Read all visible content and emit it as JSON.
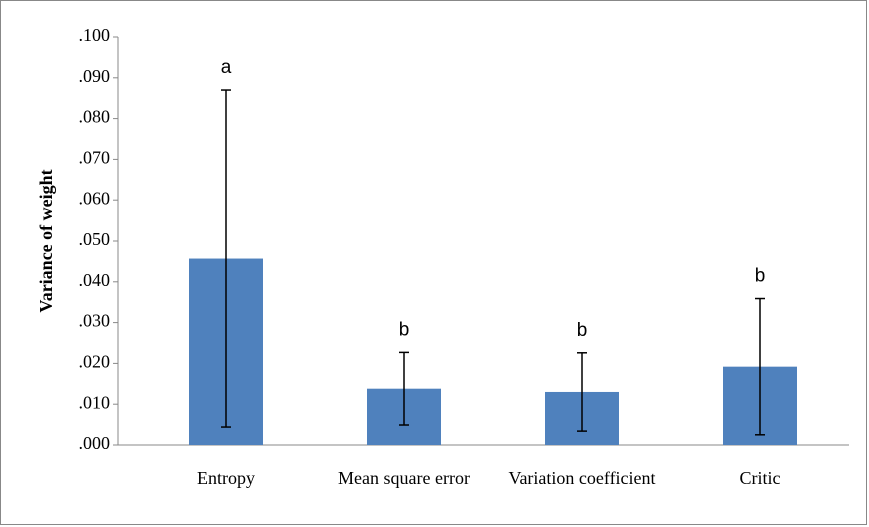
{
  "chart_data": {
    "type": "bar",
    "y_label": "Variance of weight",
    "categories": [
      "Entropy",
      "Mean square error",
      "Variation coefficient",
      "Critic"
    ],
    "values": [
      0.0457,
      0.0138,
      0.013,
      0.0192
    ],
    "errors": [
      0.0413,
      0.0089,
      0.0096,
      0.0167
    ],
    "annotations": [
      "a",
      "b",
      "b",
      "b"
    ],
    "color": "#4f81bd",
    "ylim": [
      0,
      0.1
    ],
    "yticks": [
      {
        "value": 0,
        "label": ".000"
      },
      {
        "value": 0.01,
        "label": ".010"
      },
      {
        "value": 0.02,
        "label": ".020"
      },
      {
        "value": 0.03,
        "label": ".030"
      },
      {
        "value": 0.04,
        "label": ".040"
      },
      {
        "value": 0.05,
        "label": ".050"
      },
      {
        "value": 0.06,
        "label": ".060"
      },
      {
        "value": 0.07,
        "label": ".070"
      },
      {
        "value": 0.08,
        "label": ".080"
      },
      {
        "value": 0.09,
        "label": ".090"
      },
      {
        "value": 0.1,
        "label": ".100"
      }
    ],
    "grid": false
  }
}
